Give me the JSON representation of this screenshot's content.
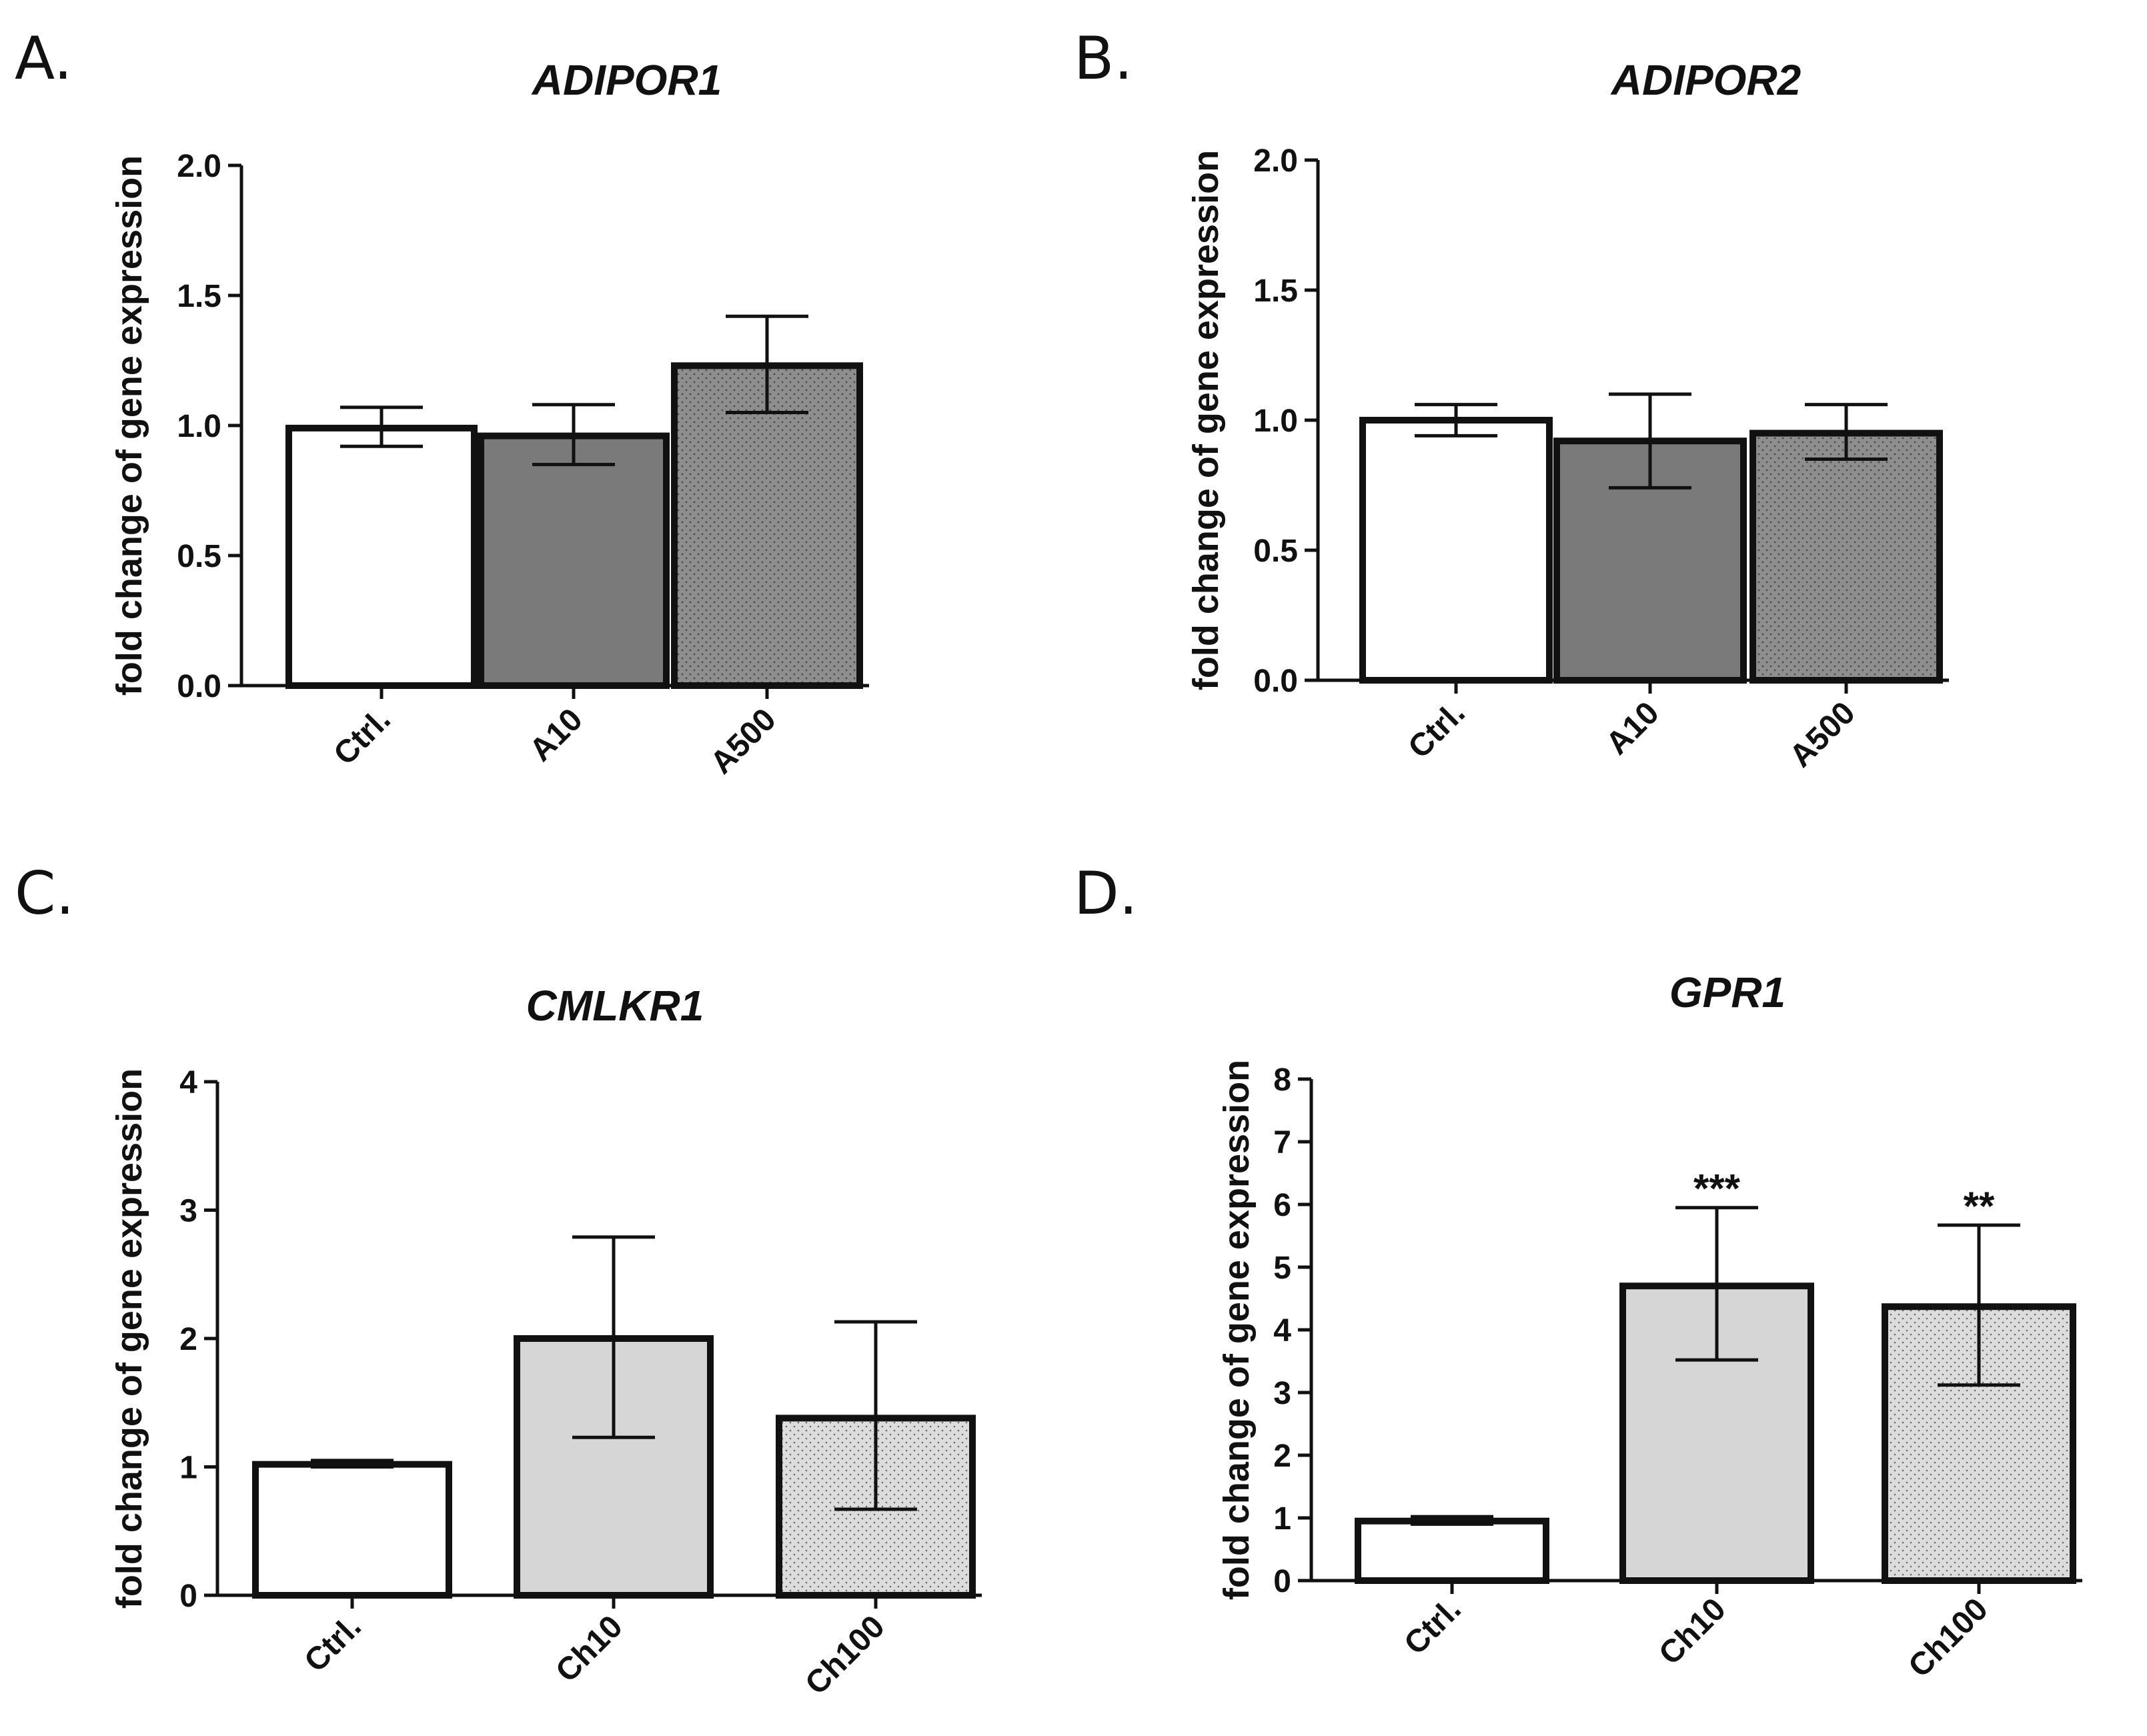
{
  "chart_data": [
    {
      "panel": "A.",
      "type": "bar",
      "title": "ADIPOR1",
      "xlabel": "",
      "ylabel": "fold change of gene expression",
      "categories": [
        "Ctrl.",
        "A10",
        "A500"
      ],
      "values": [
        0.99,
        0.96,
        1.23
      ],
      "error_upper": [
        1.07,
        1.08,
        1.42
      ],
      "error_lower": [
        0.92,
        0.85,
        1.05
      ],
      "fills": [
        "white",
        "dark-gray",
        "dotted-gray"
      ],
      "significance": [
        "",
        "",
        ""
      ],
      "ylim": [
        0,
        2.0
      ],
      "yticks": [
        "0.0",
        "0.5",
        "1.0",
        "1.5",
        "2.0"
      ],
      "grid": false
    },
    {
      "panel": "B.",
      "type": "bar",
      "title": "ADIPOR2",
      "xlabel": "",
      "ylabel": "fold change of gene expression",
      "categories": [
        "Ctrl.",
        "A10",
        "A500"
      ],
      "values": [
        1.0,
        0.92,
        0.95
      ],
      "error_upper": [
        1.06,
        1.1,
        1.06
      ],
      "error_lower": [
        0.94,
        0.74,
        0.85
      ],
      "fills": [
        "white",
        "dark-gray",
        "dotted-gray"
      ],
      "significance": [
        "",
        "",
        ""
      ],
      "ylim": [
        0,
        2.0
      ],
      "yticks": [
        "0.0",
        "0.5",
        "1.0",
        "1.5",
        "2.0"
      ],
      "grid": false
    },
    {
      "panel": "C.",
      "type": "bar",
      "title": "CMLKR1",
      "xlabel": "",
      "ylabel": "fold change of gene expression",
      "categories": [
        "Ctrl.",
        "Ch10",
        "Ch100"
      ],
      "values": [
        1.02,
        2.0,
        1.38
      ],
      "error_upper": [
        1.05,
        2.79,
        2.13
      ],
      "error_lower": [
        1.0,
        1.23,
        0.67
      ],
      "fills": [
        "white",
        "light-gray",
        "dotted-light-gray"
      ],
      "significance": [
        "",
        "",
        ""
      ],
      "ylim": [
        0,
        4
      ],
      "yticks": [
        "0",
        "1",
        "2",
        "3",
        "4"
      ],
      "grid": false
    },
    {
      "panel": "D.",
      "type": "bar",
      "title": "GPR1",
      "xlabel": "",
      "ylabel": "fold change of gene expression",
      "categories": [
        "Ctrl.",
        "Ch10",
        "Ch100"
      ],
      "values": [
        0.95,
        4.7,
        4.37
      ],
      "error_upper": [
        1.02,
        5.95,
        5.67
      ],
      "error_lower": [
        0.9,
        3.52,
        3.12
      ],
      "fills": [
        "white",
        "light-gray",
        "dotted-light-gray"
      ],
      "significance": [
        "",
        "***",
        "**"
      ],
      "ylim": [
        0,
        8
      ],
      "yticks": [
        "0",
        "1",
        "2",
        "3",
        "4",
        "5",
        "6",
        "7",
        "8"
      ],
      "grid": false
    }
  ],
  "colors": {
    "ink": "#111111",
    "white": "#ffffff",
    "dark-gray": "#7a7a7a",
    "dotted-gray": "#8e8e8e",
    "light-gray": "#d6d6d6",
    "dotted-light-gray": "#dcdcdc",
    "dot": "#555555"
  }
}
